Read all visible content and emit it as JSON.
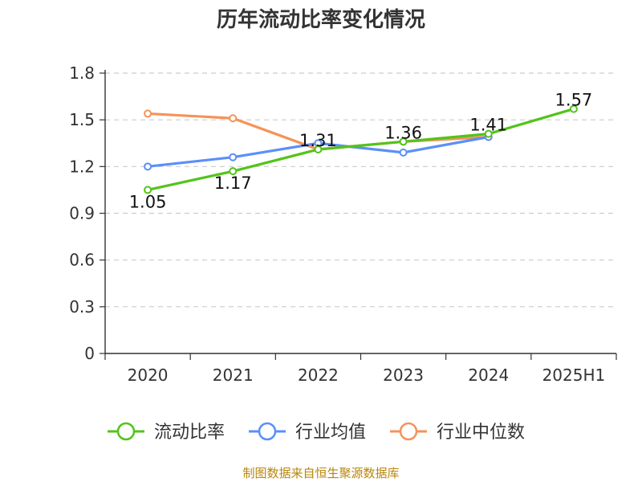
{
  "chart_data": {
    "type": "line",
    "title": "历年流动比率变化情况",
    "xlabel": "",
    "ylabel": "",
    "categories": [
      "2020",
      "2021",
      "2022",
      "2023",
      "2024",
      "2025H1"
    ],
    "ylim": [
      0,
      1.8
    ],
    "yticks": [
      "0",
      "0.3",
      "0.6",
      "0.9",
      "1.2",
      "1.5",
      "1.8"
    ],
    "grid": true,
    "legend_position": "bottom",
    "series": [
      {
        "name": "流动比率",
        "color": "#52c41a",
        "values": [
          1.05,
          1.17,
          1.31,
          1.36,
          1.41,
          1.57
        ],
        "labels": [
          "1.05",
          "1.17",
          "1.31",
          "1.36",
          "1.41",
          "1.57"
        ],
        "label_side": [
          "below",
          "below",
          "above",
          "above",
          "above",
          "above"
        ]
      },
      {
        "name": "行业均值",
        "color": "#5b8ff9",
        "values": [
          1.2,
          1.26,
          1.35,
          1.29,
          1.39,
          null
        ]
      },
      {
        "name": "行业中位数",
        "color": "#f5935a",
        "values": [
          1.54,
          1.51,
          1.31,
          1.36,
          1.39,
          null
        ]
      }
    ]
  },
  "source_text": "制图数据来自恒生聚源数据库"
}
